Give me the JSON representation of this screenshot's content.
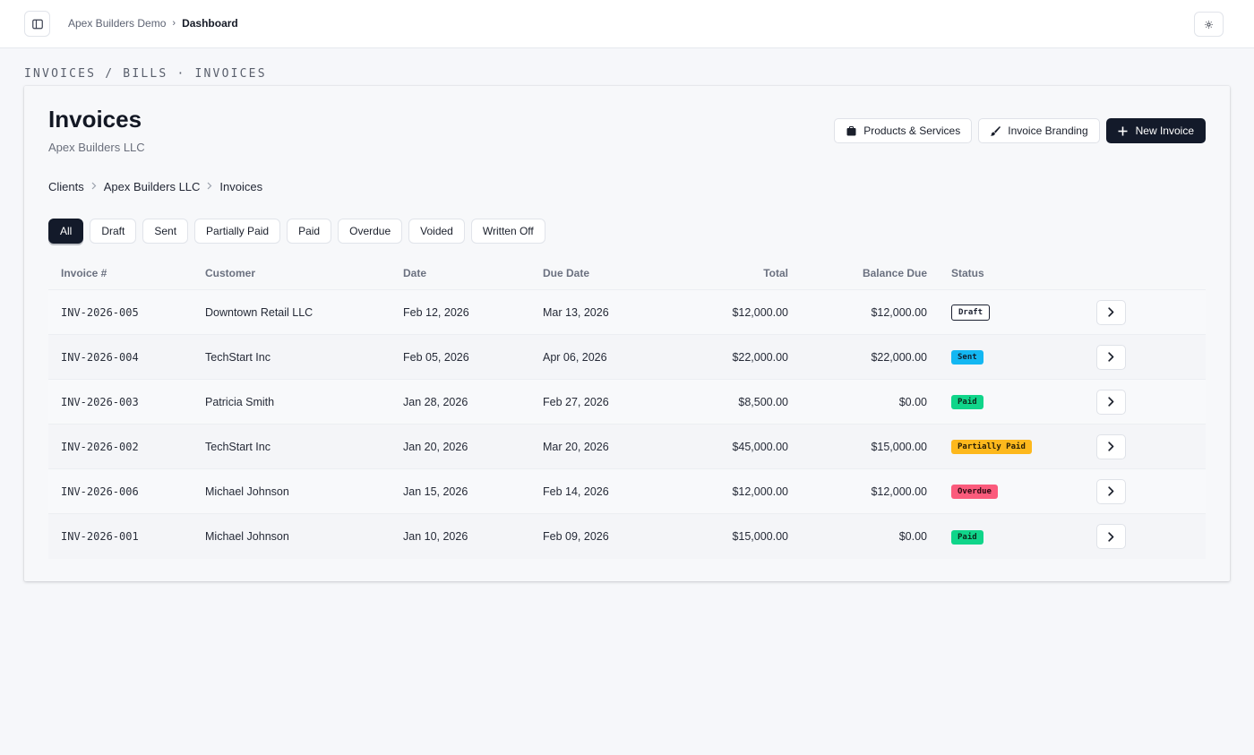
{
  "topbar": {
    "breadcrumb": [
      {
        "label": "Apex Builders Demo"
      },
      {
        "label": "Dashboard"
      }
    ],
    "separator": "›",
    "sidebar_toggle_icon": "sidebar-panel-icon",
    "theme_icon": "sun-icon"
  },
  "section_label": "INVOICES / BILLS · INVOICES",
  "page": {
    "title": "Invoices",
    "subtitle": "Apex Builders LLC",
    "actions": {
      "products": "Products & Services",
      "branding": "Invoice Branding",
      "new_invoice": "New Invoice"
    },
    "breadcrumb": [
      {
        "label": "Clients"
      },
      {
        "label": "Apex Builders LLC"
      },
      {
        "label": "Invoices"
      }
    ],
    "filters": [
      "All",
      "Draft",
      "Sent",
      "Partially Paid",
      "Paid",
      "Overdue",
      "Voided",
      "Written Off"
    ],
    "active_filter": "All"
  },
  "table": {
    "columns": {
      "number": "Invoice #",
      "customer": "Customer",
      "date": "Date",
      "due": "Due Date",
      "total": "Total",
      "balance": "Balance Due",
      "status": "Status"
    },
    "rows": [
      {
        "number": "INV-2026-005",
        "customer": "Downtown Retail LLC",
        "date": "Feb 12, 2026",
        "due": "Mar 13, 2026",
        "total": "$12,000.00",
        "balance": "$12,000.00",
        "status": "Draft",
        "status_class": "draft"
      },
      {
        "number": "INV-2026-004",
        "customer": "TechStart Inc",
        "date": "Feb 05, 2026",
        "due": "Apr 06, 2026",
        "total": "$22,000.00",
        "balance": "$22,000.00",
        "status": "Sent",
        "status_class": "sent"
      },
      {
        "number": "INV-2026-003",
        "customer": "Patricia Smith",
        "date": "Jan 28, 2026",
        "due": "Feb 27, 2026",
        "total": "$8,500.00",
        "balance": "$0.00",
        "status": "Paid",
        "status_class": "paid"
      },
      {
        "number": "INV-2026-002",
        "customer": "TechStart Inc",
        "date": "Jan 20, 2026",
        "due": "Mar 20, 2026",
        "total": "$45,000.00",
        "balance": "$15,000.00",
        "status": "Partially Paid",
        "status_class": "partial"
      },
      {
        "number": "INV-2026-006",
        "customer": "Michael Johnson",
        "date": "Jan 15, 2026",
        "due": "Feb 14, 2026",
        "total": "$12,000.00",
        "balance": "$12,000.00",
        "status": "Overdue",
        "status_class": "overdue"
      },
      {
        "number": "INV-2026-001",
        "customer": "Michael Johnson",
        "date": "Jan 10, 2026",
        "due": "Feb 09, 2026",
        "total": "$15,000.00",
        "balance": "$0.00",
        "status": "Paid",
        "status_class": "paid"
      }
    ]
  },
  "colors": {
    "primary": "#131a2a",
    "sent": "#13b7f2",
    "paid": "#10d58a",
    "partial": "#fdb81d",
    "overdue": "#fb5b7c"
  }
}
